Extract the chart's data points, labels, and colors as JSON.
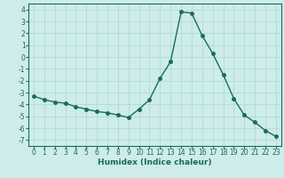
{
  "x": [
    0,
    1,
    2,
    3,
    4,
    5,
    6,
    7,
    8,
    9,
    10,
    11,
    12,
    13,
    14,
    15,
    16,
    17,
    18,
    19,
    20,
    21,
    22,
    23
  ],
  "y": [
    -3.3,
    -3.6,
    -3.8,
    -3.9,
    -4.2,
    -4.4,
    -4.6,
    -4.7,
    -4.9,
    -5.1,
    -4.4,
    -3.6,
    -1.8,
    -0.4,
    3.8,
    3.7,
    1.8,
    0.3,
    -1.5,
    -3.5,
    -4.9,
    -5.5,
    -6.2,
    -6.7
  ],
  "line_color": "#1a6b5a",
  "marker": "o",
  "markersize": 2.5,
  "linewidth": 1.0,
  "bg_color": "#ceecea",
  "grid_color": "#a8d8d4",
  "xlabel": "Humidex (Indice chaleur)",
  "xlim": [
    -0.5,
    23.5
  ],
  "ylim": [
    -7.5,
    4.5
  ],
  "yticks": [
    -7,
    -6,
    -5,
    -4,
    -3,
    -2,
    -1,
    0,
    1,
    2,
    3,
    4
  ],
  "xticks": [
    0,
    1,
    2,
    3,
    4,
    5,
    6,
    7,
    8,
    9,
    10,
    11,
    12,
    13,
    14,
    15,
    16,
    17,
    18,
    19,
    20,
    21,
    22,
    23
  ],
  "label_fontsize": 6.5,
  "tick_fontsize": 5.5
}
